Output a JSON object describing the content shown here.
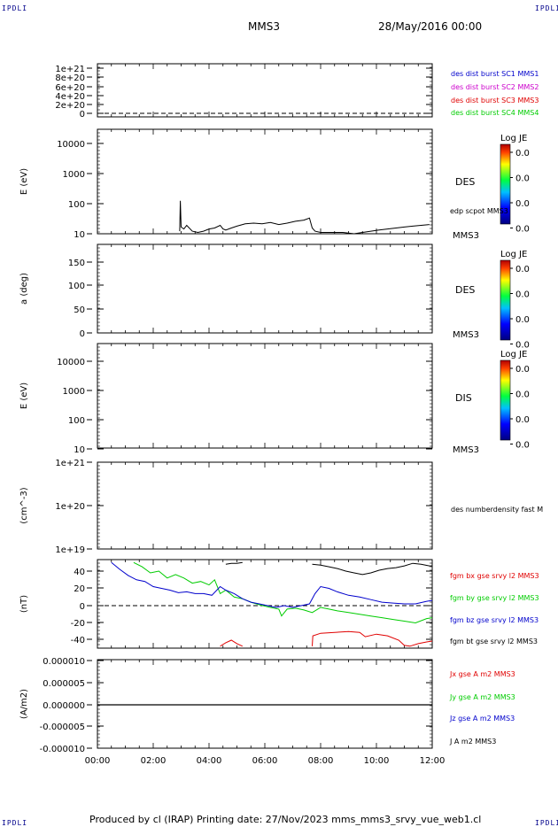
{
  "corners": {
    "tl": "IPDLI",
    "tr": "IPDLI",
    "bl": "IPDLI",
    "br": "IPDLI"
  },
  "header": {
    "spacecraft": "MMS3",
    "date": "28/May/2016 00:00"
  },
  "footer": "Produced by cl (IRAP)   Printing date: 27/Nov/2023   mms_mms3_srvy_vue_web1.cl",
  "x_axis": {
    "ticks": [
      "00:00",
      "02:00",
      "04:00",
      "06:00",
      "08:00",
      "10:00",
      "12:00"
    ],
    "range_hours": [
      0,
      12
    ]
  },
  "colors": {
    "black": "#000000",
    "red": "#e00000",
    "green": "#00cc00",
    "blue": "#0000cc",
    "magenta": "#cc00cc"
  },
  "chart_data": [
    {
      "type": "line",
      "ylabel": "",
      "yticks": [
        "1e+21",
        "8e+20",
        "6e+20",
        "4e+20",
        "2e+20",
        "0"
      ],
      "ylim": [
        0,
        1.1e+21
      ],
      "legend": [
        {
          "label": "des dist burst SC1 MMS1",
          "color": "#0000cc"
        },
        {
          "label": "des dist burst SC2 MMS2",
          "color": "#cc00cc"
        },
        {
          "label": "des dist burst SC3 MMS3",
          "color": "#e00000"
        },
        {
          "label": "des dist burst SC4 MMS4",
          "color": "#00cc00"
        }
      ],
      "series": []
    },
    {
      "type": "heatmap",
      "ylabel": "E (eV)",
      "yticks": [
        "10000",
        "1000",
        "100",
        "10"
      ],
      "scale": "log",
      "ylim": [
        10,
        15000
      ],
      "side_label": "DES",
      "colorbar": {
        "title": "Log JE",
        "ticks": [
          "0.0",
          "0.0",
          "0.0",
          "0.0"
        ]
      },
      "overlay_label": "edp scpot MMS3",
      "overlay_series": {
        "name": "edp scpot MMS3",
        "x": [
          2.95,
          2.97,
          3.0,
          3.1,
          3.2,
          3.4,
          3.6,
          3.8,
          4.0,
          4.2,
          4.4,
          4.5,
          4.6,
          4.8,
          5.0,
          5.3,
          5.6,
          5.9,
          6.2,
          6.5,
          6.8,
          7.1,
          7.4,
          7.6,
          7.7,
          7.8,
          8.0,
          8.4,
          8.8,
          9.2,
          9.5,
          9.8,
          10.1,
          10.4,
          10.7,
          11.0,
          11.3,
          11.6,
          11.9
        ],
        "y": [
          12,
          100,
          16,
          14,
          18,
          12,
          11,
          12,
          14,
          15,
          18,
          14,
          13,
          15,
          17,
          20,
          21,
          20,
          22,
          19,
          21,
          24,
          26,
          30,
          15,
          12,
          11,
          11,
          11,
          10,
          11,
          12,
          13,
          14,
          15,
          16,
          17,
          18,
          19
        ]
      },
      "bottom_label": "MMS3"
    },
    {
      "type": "heatmap",
      "ylabel": "a (deg)",
      "yticks": [
        "150",
        "100",
        "50",
        "0"
      ],
      "ylim": [
        0,
        180
      ],
      "side_label": "DES",
      "colorbar": {
        "title": "Log JE",
        "ticks": [
          "0.0",
          "0.0",
          "0.0",
          "0.0"
        ]
      },
      "bottom_label": "MMS3"
    },
    {
      "type": "heatmap",
      "ylabel": "E (eV)",
      "yticks": [
        "10000",
        "1000",
        "100",
        "10"
      ],
      "scale": "log",
      "ylim": [
        10,
        15000
      ],
      "side_label": "DIS",
      "colorbar": {
        "title": "Log JE",
        "ticks": [
          "0.0",
          "0.0",
          "0.0",
          "0.0"
        ]
      },
      "bottom_label": "MMS3"
    },
    {
      "type": "line",
      "ylabel": "(cm^-3)",
      "yticks": [
        "1e+21",
        "1e+20",
        "1e+19"
      ],
      "scale": "log",
      "ylim": [
        1e+19,
        1e+21
      ],
      "legend": [
        {
          "label": "des numberdensity fast M",
          "color": "#000000"
        }
      ],
      "series": []
    },
    {
      "type": "line",
      "ylabel": "(nT)",
      "yticks": [
        "40",
        "20",
        "0",
        "-20",
        "-40"
      ],
      "ylim": [
        -47,
        50
      ],
      "legend": [
        {
          "label": "fgm bx gse srvy l2 MMS3",
          "color": "#e00000"
        },
        {
          "label": "fgm by gse srvy l2 MMS3",
          "color": "#00cc00"
        },
        {
          "label": "fgm bz gse srvy l2 MMS3",
          "color": "#0000cc"
        },
        {
          "label": "fgm bt gse srvy l2 MMS3",
          "color": "#000000"
        }
      ],
      "series": [
        {
          "name": "fgm bx gse srvy l2 MMS3",
          "color": "#e00000",
          "segments": [
            {
              "x": [
                4.4,
                4.6,
                4.8,
                5.0,
                5.2
              ],
              "y": [
                -47,
                -43,
                -40,
                -44,
                -47
              ]
            },
            {
              "x": [
                7.7,
                7.72,
                8.0,
                8.5,
                9.0,
                9.4,
                9.6,
                10.0,
                10.4,
                10.8,
                11.0,
                11.2,
                11.5,
                11.8,
                12.0
              ],
              "y": [
                -47,
                -35,
                -32,
                -31,
                -30,
                -31,
                -36,
                -33,
                -35,
                -40,
                -46,
                -47,
                -44,
                -42,
                -41
              ]
            }
          ]
        },
        {
          "name": "fgm by gse srvy l2 MMS3",
          "color": "#00cc00",
          "segments": [
            {
              "x": [
                1.3,
                1.6,
                1.9,
                2.2,
                2.5,
                2.8,
                3.1,
                3.4,
                3.7,
                4.0,
                4.2,
                4.4,
                4.6,
                4.9,
                5.2,
                5.5,
                5.8,
                6.2,
                6.5,
                6.6,
                6.8,
                7.1,
                7.4,
                7.7,
                8.0,
                8.3,
                8.6,
                9.0,
                9.4,
                9.8,
                10.2,
                10.6,
                11.0,
                11.4,
                11.8,
                12.0
              ],
              "y": [
                50,
                45,
                38,
                40,
                32,
                36,
                32,
                26,
                28,
                24,
                30,
                14,
                18,
                10,
                8,
                4,
                1,
                -2,
                -4,
                -12,
                -4,
                -3,
                -5,
                -8,
                -2,
                -4,
                -6,
                -8,
                -10,
                -12,
                -14,
                -16,
                -18,
                -20,
                -15,
                -14
              ]
            }
          ]
        },
        {
          "name": "fgm bz gse srvy l2 MMS3",
          "color": "#0000cc",
          "segments": [
            {
              "x": [
                0.5,
                0.8,
                1.1,
                1.4,
                1.7,
                2.0,
                2.3,
                2.6,
                2.9,
                3.2,
                3.5,
                3.8,
                4.1,
                4.4,
                4.6,
                4.9,
                5.2,
                5.5,
                5.8,
                6.1,
                6.4,
                6.7,
                7.0,
                7.3,
                7.6,
                7.8,
                8.0,
                8.3,
                8.6,
                9.0,
                9.4,
                9.8,
                10.2,
                10.6,
                11.0,
                11.4,
                11.8,
                12.0
              ],
              "y": [
                50,
                42,
                35,
                30,
                28,
                22,
                20,
                18,
                15,
                16,
                14,
                14,
                12,
                22,
                18,
                14,
                8,
                4,
                2,
                0,
                -2,
                0,
                -2,
                0,
                2,
                14,
                22,
                20,
                16,
                12,
                10,
                7,
                4,
                3,
                2,
                2,
                5,
                6
              ]
            }
          ]
        },
        {
          "name": "fgm bt gse srvy l2 MMS3",
          "color": "#000000",
          "segments": [
            {
              "x": [
                4.6,
                4.8,
                5.0,
                5.2
              ],
              "y": [
                48,
                49,
                49,
                50
              ]
            },
            {
              "x": [
                7.7,
                8.0,
                8.3,
                8.6,
                8.9,
                9.2,
                9.5,
                9.8,
                10.1,
                10.4,
                10.7,
                11.0,
                11.3,
                11.6,
                11.9,
                12.0
              ],
              "y": [
                48,
                47,
                45,
                43,
                40,
                38,
                36,
                38,
                41,
                43,
                44,
                46,
                49,
                48,
                46,
                46
              ]
            }
          ]
        }
      ],
      "dashed_zero": true
    },
    {
      "type": "line",
      "ylabel": "(A/m2)",
      "yticks": [
        "0.000010",
        "0.000005",
        "0.000000",
        "-0.000005",
        "-0.000010"
      ],
      "ylim": [
        -1e-05,
        1e-05
      ],
      "legend": [
        {
          "label": "Jx gse A m2 MMS3",
          "color": "#e00000"
        },
        {
          "label": "Jy gse A m2 MMS3",
          "color": "#00cc00"
        },
        {
          "label": "Jz gse A m2 MMS3",
          "color": "#0000cc"
        },
        {
          "label": "J A m2 MMS3",
          "color": "#000000"
        }
      ],
      "series": [
        {
          "name": "J A m2 MMS3",
          "color": "#000000",
          "segments": [
            {
              "x": [
                0,
                12
              ],
              "y": [
                0,
                0
              ]
            }
          ]
        }
      ]
    }
  ]
}
